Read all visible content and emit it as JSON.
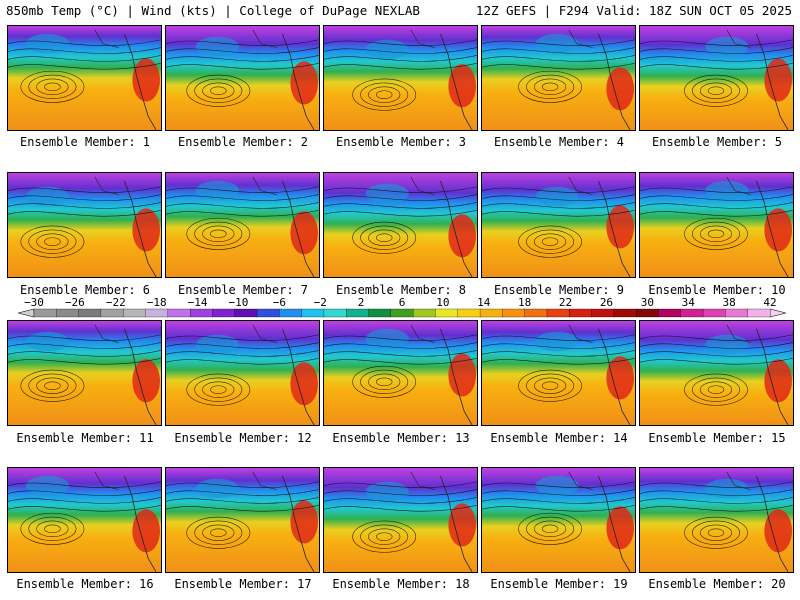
{
  "header": {
    "left": "850mb Temp (°C) | Wind (kts) | College of DuPage NEXLAB",
    "right": "12Z GEFS | F294 Valid: 18Z SUN OCT 05 2025"
  },
  "caption_prefix": "Ensemble Member: ",
  "members": [
    1,
    2,
    3,
    4,
    5,
    6,
    7,
    8,
    9,
    10,
    11,
    12,
    13,
    14,
    15,
    16,
    17,
    18,
    19,
    20
  ],
  "colorbar": {
    "labels": [
      "−30",
      "−26",
      "−22",
      "−18",
      "−14",
      "−10",
      "−6",
      "−2",
      "2",
      "6",
      "10",
      "14",
      "18",
      "22",
      "26",
      "30",
      "34",
      "38",
      "42"
    ],
    "colors": [
      "#9a9a9a",
      "#8a8a8a",
      "#7c7c7c",
      "#a0a0a0",
      "#b6b6b6",
      "#c8b0e0",
      "#c070e8",
      "#a040e0",
      "#8020d0",
      "#6010b0",
      "#3050e0",
      "#2090f0",
      "#20c0f0",
      "#30d8d0",
      "#10b090",
      "#109040",
      "#40a020",
      "#a0c820",
      "#e8e820",
      "#f8d010",
      "#f8b010",
      "#f89010",
      "#f07010",
      "#e84010",
      "#d82010",
      "#c01010",
      "#a00808",
      "#800808",
      "#b00060",
      "#d02090",
      "#e040b0",
      "#e878d0",
      "#f0b0e8"
    ]
  }
}
